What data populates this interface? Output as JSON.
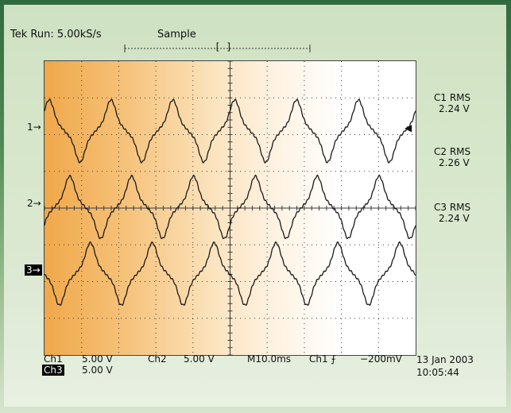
{
  "header": {
    "status": "Tek Run: 5.00kS/s",
    "mode": "Sample",
    "trigger_marker": "[ ]"
  },
  "channels": [
    {
      "id": "1",
      "marker_label": "1→",
      "measurement": "C1 RMS",
      "value": "2.24 V"
    },
    {
      "id": "2",
      "marker_label": "2→",
      "measurement": "C2 RMS",
      "value": "2.26 V"
    },
    {
      "id": "3",
      "marker_label": "3→",
      "measurement": "C3 RMS",
      "value": "2.24 V"
    }
  ],
  "trigger_level_marker": "◀",
  "footer": {
    "ch1_label": "Ch1",
    "ch1_scale": "5.00 V",
    "ch2_label": "Ch2",
    "ch2_scale": "5.00 V",
    "timebase": "M10.0ms",
    "trigger": "Ch1 ⨍",
    "trigger_level": "−200mV",
    "ch3_label": "Ch3",
    "ch3_scale": "5.00 V",
    "date": "13 Jan 2003",
    "time": "10:05:44"
  },
  "colors": {
    "trace": "#1a1a1a",
    "grid": "#3b3b3b"
  },
  "chart_data": {
    "type": "line",
    "title": "",
    "xlabel": "",
    "ylabel": "",
    "divisions": {
      "x": 10,
      "y": 8
    },
    "time_per_div_ms": 10,
    "volts_per_div": 5,
    "series": [
      {
        "name": "C1 RMS",
        "rms_v": 2.24,
        "periods_on_screen": 6,
        "phase_deg": 0
      },
      {
        "name": "C2 RMS",
        "rms_v": 2.26,
        "periods_on_screen": 6,
        "phase_deg": -120
      },
      {
        "name": "C3 RMS",
        "rms_v": 2.24,
        "periods_on_screen": 6,
        "phase_deg": 120
      }
    ]
  }
}
